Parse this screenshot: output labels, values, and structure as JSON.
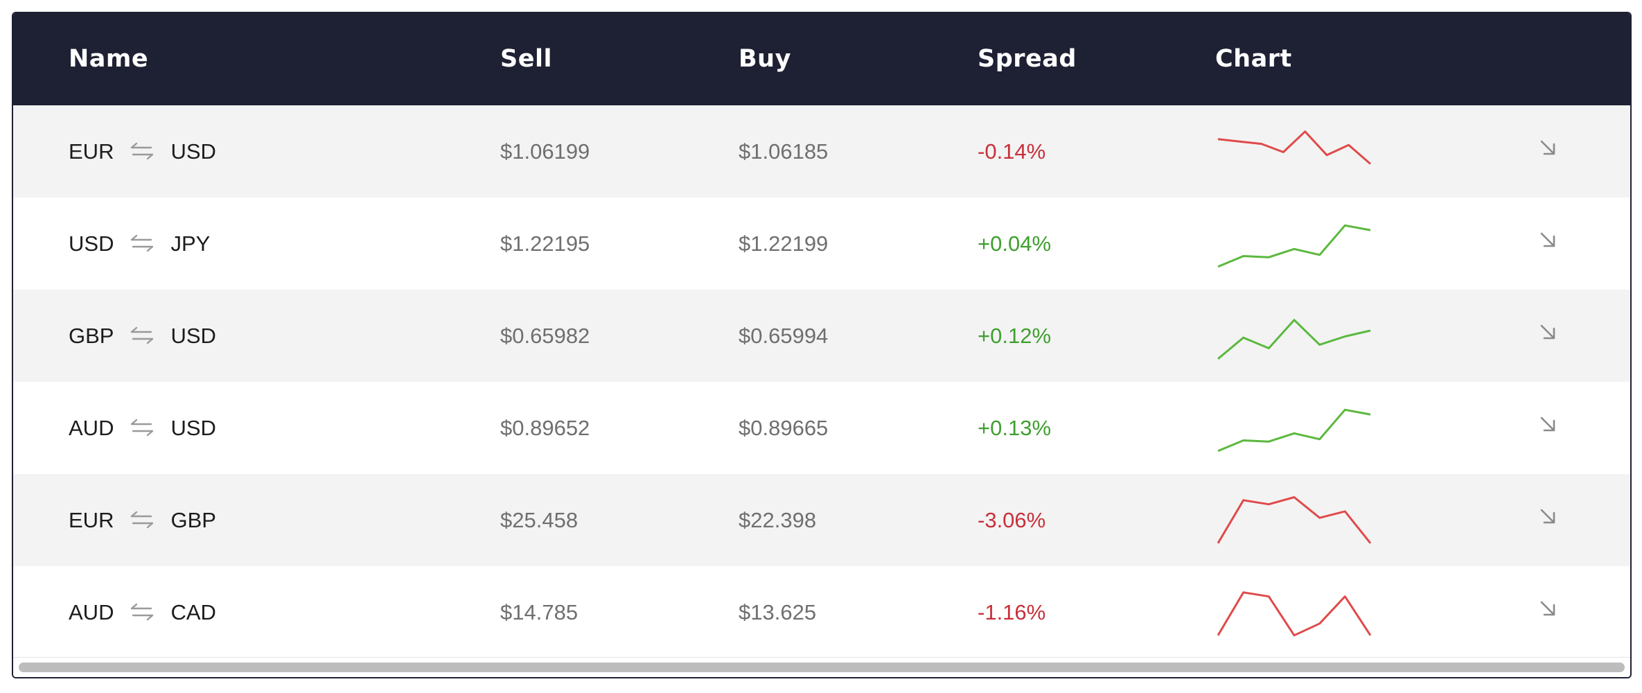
{
  "header": {
    "name": "Name",
    "sell": "Sell",
    "buy": "Buy",
    "spread": "Spread",
    "chart": "Chart"
  },
  "colors": {
    "header_bg": "#1e2133",
    "negative": "#e04a4a",
    "positive": "#5bb83e",
    "row_alt": "#f3f3f3"
  },
  "rows": [
    {
      "base": "EUR",
      "quote": "USD",
      "sell": "$1.06199",
      "buy": "$1.06185",
      "spread": "-0.14%",
      "trend": "down",
      "spark": [
        0.72,
        0.68,
        0.64,
        0.5,
        0.85,
        0.45,
        0.62,
        0.3
      ]
    },
    {
      "base": "USD",
      "quote": "JPY",
      "sell": "$1.22195",
      "buy": "$1.22199",
      "spread": "+0.04%",
      "trend": "up",
      "spark": [
        0.12,
        0.3,
        0.28,
        0.42,
        0.32,
        0.82,
        0.74
      ]
    },
    {
      "base": "GBP",
      "quote": "USD",
      "sell": "$0.65982",
      "buy": "$0.65994",
      "spread": "+0.12%",
      "trend": "up",
      "spark": [
        0.12,
        0.48,
        0.3,
        0.78,
        0.36,
        0.5,
        0.6
      ]
    },
    {
      "base": "AUD",
      "quote": "USD",
      "sell": "$0.89652",
      "buy": "$0.89665",
      "spread": "+0.13%",
      "trend": "up",
      "spark": [
        0.12,
        0.3,
        0.28,
        0.42,
        0.32,
        0.82,
        0.74
      ]
    },
    {
      "base": "EUR",
      "quote": "GBP",
      "sell": "$25.458",
      "buy": "$22.398",
      "spread": "-3.06%",
      "trend": "down",
      "spark": [
        0.12,
        0.85,
        0.78,
        0.9,
        0.55,
        0.66,
        0.12
      ]
    },
    {
      "base": "AUD",
      "quote": "CAD",
      "sell": "$14.785",
      "buy": "$13.625",
      "spread": "-1.16%",
      "trend": "down",
      "spark": [
        0.12,
        0.85,
        0.78,
        0.12,
        0.32,
        0.78,
        0.12
      ]
    }
  ],
  "icons": {
    "swap": "swap-arrows-icon",
    "expand": "arrow-down-right-icon"
  }
}
